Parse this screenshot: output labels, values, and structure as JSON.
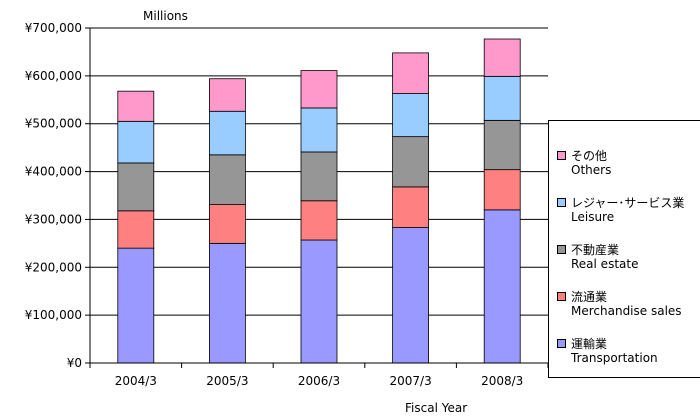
{
  "chart_data": {
    "type": "stacked-bar",
    "unit_label": "Millions",
    "xlabel": "Fiscal Year",
    "categories": [
      "2004/3",
      "2005/3",
      "2006/3",
      "2007/3",
      "2008/3"
    ],
    "y_ticks": [
      "¥0",
      "¥100,000",
      "¥200,000",
      "¥300,000",
      "¥400,000",
      "¥500,000",
      "¥600,000",
      "¥700,000"
    ],
    "ylim": [
      0,
      700000
    ],
    "grid": true,
    "legend_position": "right",
    "series": [
      {
        "name": "運輸業",
        "name_en": "Transportation",
        "color": "#9999FF",
        "values": [
          240000,
          250000,
          257000,
          283000,
          320000
        ]
      },
      {
        "name": "流通業",
        "name_en": "Merchandise sales",
        "color": "#FF8080",
        "values": [
          78000,
          81000,
          82000,
          85000,
          84000
        ]
      },
      {
        "name": "不動産業",
        "name_en": "Real estate",
        "color": "#969696",
        "values": [
          100000,
          104000,
          102000,
          105000,
          103000
        ]
      },
      {
        "name": "レジャー･サービス業",
        "name_en": "Leisure",
        "color": "#99CCFF",
        "values": [
          87000,
          91000,
          92000,
          90000,
          92000
        ]
      },
      {
        "name": "その他",
        "name_en": "Others",
        "color": "#FF99CC",
        "values": [
          63000,
          68000,
          78000,
          85000,
          78000
        ]
      }
    ]
  }
}
